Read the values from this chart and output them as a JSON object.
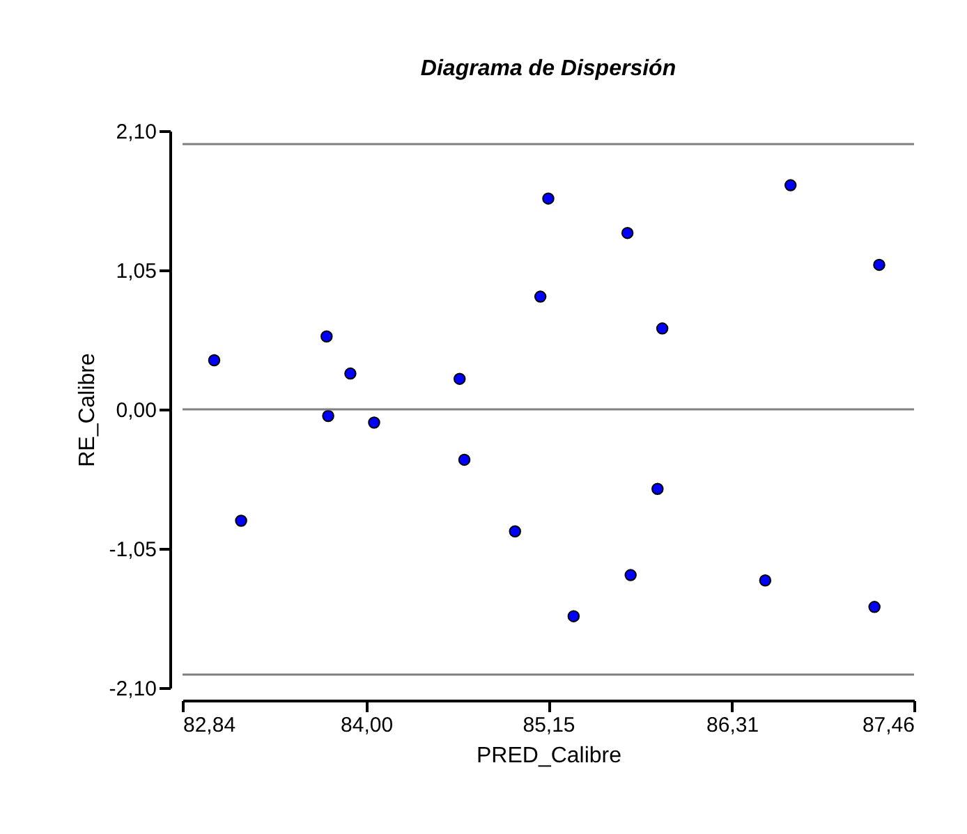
{
  "chart_data": {
    "type": "scatter",
    "title": "Diagrama de Dispersión",
    "xlabel": "PRED_Calibre",
    "ylabel": "RE_Calibre",
    "x": [
      83.04,
      83.75,
      83.9,
      84.59,
      83.76,
      84.05,
      84.62,
      85.1,
      85.15,
      85.65,
      85.87,
      86.68,
      87.24,
      83.21,
      84.94,
      85.84,
      85.67,
      85.31,
      86.52,
      87.21
    ],
    "series": [
      {
        "color": "#0000ff",
        "values": [
          0.37,
          0.55,
          0.27,
          0.23,
          -0.05,
          -0.1,
          -0.38,
          0.85,
          1.59,
          1.33,
          0.61,
          1.69,
          1.09,
          -0.84,
          -0.92,
          -0.6,
          -1.25,
          -1.56,
          -1.29,
          -1.49
        ]
      }
    ],
    "xlim": [
      82.84,
      87.46
    ],
    "ylim": [
      -2.1,
      2.1
    ],
    "xticks": [
      {
        "value": 82.84,
        "label": "82,84"
      },
      {
        "value": 84.0,
        "label": "84,00"
      },
      {
        "value": 85.15,
        "label": "85,15"
      },
      {
        "value": 86.31,
        "label": "86,31"
      },
      {
        "value": 87.46,
        "label": "87,46"
      }
    ],
    "yticks": [
      {
        "value": -2.1,
        "label": "-2,10"
      },
      {
        "value": -1.05,
        "label": "-1,05"
      },
      {
        "value": 0,
        "label": "0,00"
      },
      {
        "value": 1.05,
        "label": "1,05"
      },
      {
        "value": 2.1,
        "label": "2,10"
      }
    ],
    "ref_lines": [
      {
        "axis": "y",
        "value": 2,
        "color": "#808080"
      },
      {
        "axis": "y",
        "value": 0,
        "color": "#808080"
      },
      {
        "axis": "y",
        "value": -2,
        "color": "#808080"
      }
    ],
    "marker": "circle",
    "grid": false
  }
}
